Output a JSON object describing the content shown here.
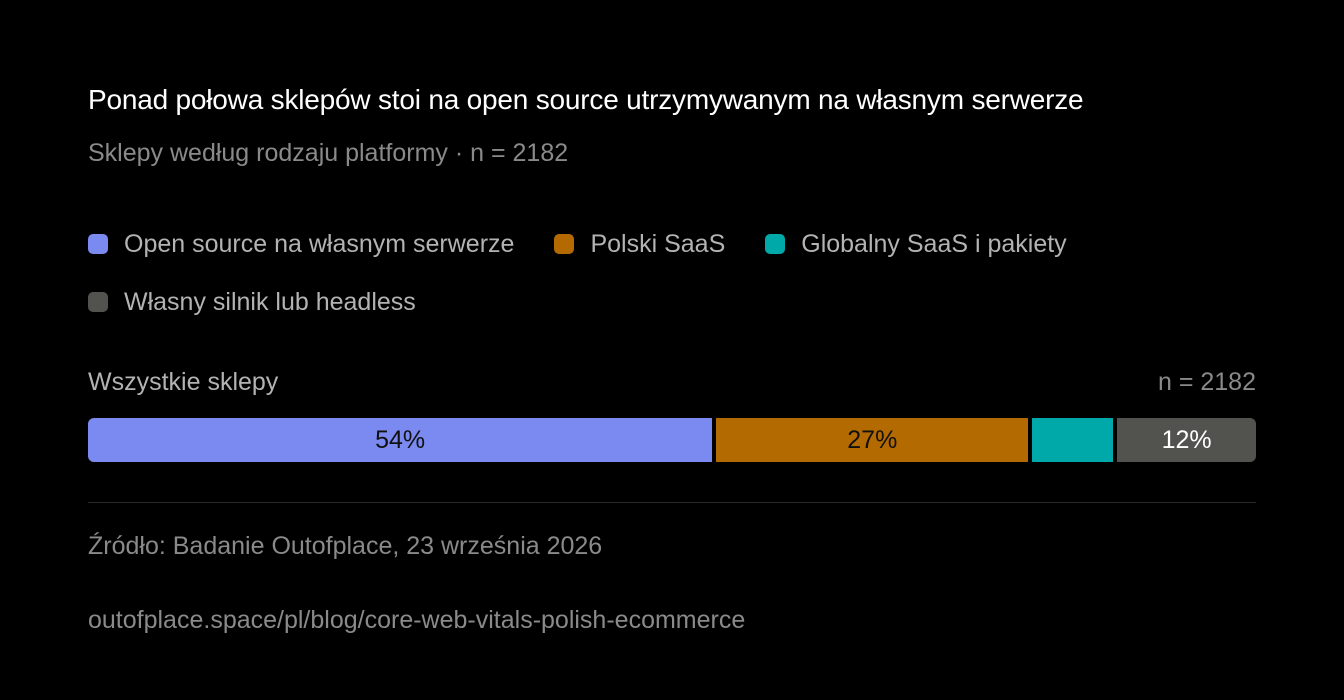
{
  "chart_data": {
    "type": "bar",
    "orientation": "horizontal-stacked-100",
    "title": "Ponad połowa sklepów stoi na open source utrzymywanym na własnym serwerze",
    "subtitle": "Sklepy według rodzaju platformy · n = 2182",
    "legend_placement": "top",
    "categories": [
      "Wszystkie sklepy"
    ],
    "category_n_label": "n = 2182",
    "series": [
      {
        "name": "Open source na własnym serwerze",
        "values": [
          54
        ],
        "label": "54%",
        "color": "#7b8af0",
        "text_color": "#111111"
      },
      {
        "name": "Polski SaaS",
        "values": [
          27
        ],
        "label": "27%",
        "color": "#b36a00",
        "text_color": "#111111"
      },
      {
        "name": "Globalny SaaS i pakiety",
        "values": [
          7
        ],
        "label": "",
        "color": "#00a9a9",
        "text_color": "#111111"
      },
      {
        "name": "Własny silnik lub headless",
        "values": [
          12
        ],
        "label": "12%",
        "color": "#52524f",
        "text_color": "#ffffff"
      }
    ],
    "source": "Źródło: Badanie Outofplace, 23 września 2026",
    "url": "outofplace.space/pl/blog/core-web-vitals-polish-ecommerce"
  }
}
